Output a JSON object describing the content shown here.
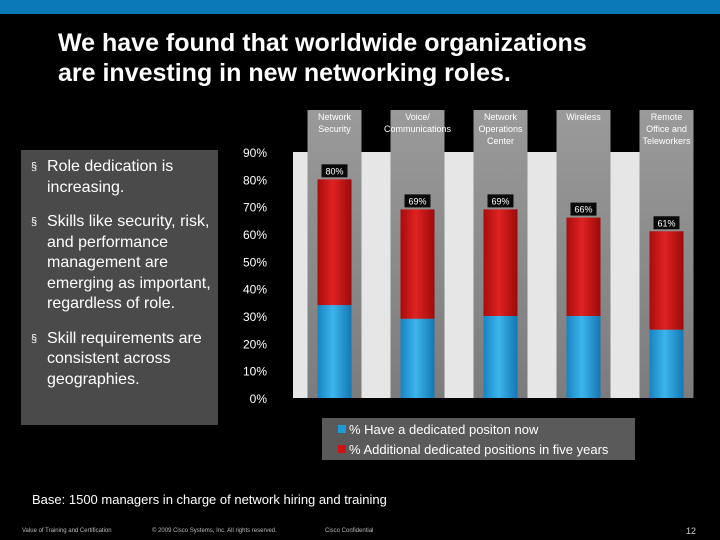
{
  "slide": {
    "title_line1": "We have found that worldwide organizations",
    "title_line2": "are investing in new networking roles.",
    "bullets": [
      "Role dedication is increasing.",
      "Skills like security, risk, and performance management are emerging as important, regardless of role.",
      "Skill requirements are consistent across geographies."
    ],
    "bullet_symbol": "§",
    "footnote": "Base: 1500 managers in charge of network hiring and training",
    "footer": {
      "left": "Value of Training and Certification",
      "copyright": "© 2009 Cisco Systems, Inc. All rights reserved.",
      "confidential": "Cisco Confidential",
      "page": "12"
    }
  },
  "colors": {
    "accent_bar": "#0b79b7",
    "blue": "#1e9ad6",
    "red": "#cc1414",
    "column_band": "#8c8c8c",
    "bullet_panel": "#4a4a4a",
    "legend_bg": "#5a5a5a"
  },
  "chart_data": {
    "type": "bar",
    "stacked": true,
    "categories": [
      [
        "Network",
        "Security"
      ],
      [
        "Voice/",
        "Communications"
      ],
      [
        "Network",
        "Operations",
        "Center"
      ],
      [
        "Wireless"
      ],
      [
        "Remote",
        "Office and",
        "Teleworkers"
      ]
    ],
    "series": [
      {
        "name": "% Have a dedicated positon now",
        "values": [
          34,
          29,
          30,
          30,
          25
        ]
      },
      {
        "name": "% Additional dedicated positions in five years",
        "values": [
          46,
          40,
          39,
          36,
          36
        ]
      }
    ],
    "totals": [
      80,
      69,
      69,
      66,
      61
    ],
    "total_labels": [
      "80%",
      "69%",
      "69%",
      "66%",
      "61%"
    ],
    "y_ticks": [
      "0%",
      "10%",
      "20%",
      "30%",
      "40%",
      "50%",
      "60%",
      "70%",
      "80%",
      "90%"
    ],
    "ylim": [
      0,
      90
    ],
    "legend_position": "bottom"
  }
}
